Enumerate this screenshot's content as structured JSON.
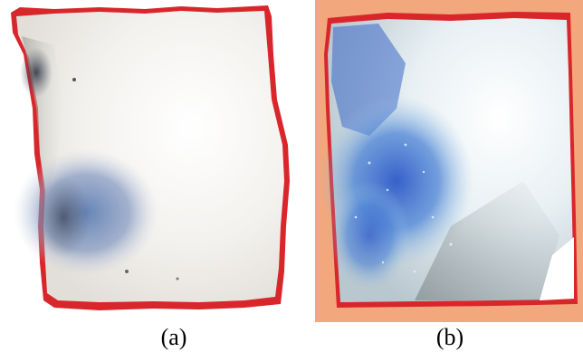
{
  "panels": [
    {
      "caption": "(a)"
    },
    {
      "caption": "(b)"
    }
  ],
  "colors": {
    "page_background": "#ffffff",
    "panel_b_background": "#f2a77c",
    "sample_edge_red": "#d8262b",
    "sample_white": "#f4f2ef",
    "stain_blue_a": "#5f7fb4",
    "stain_blue_b": "#2f59c8",
    "shadow_grey": "#9da7a8"
  }
}
